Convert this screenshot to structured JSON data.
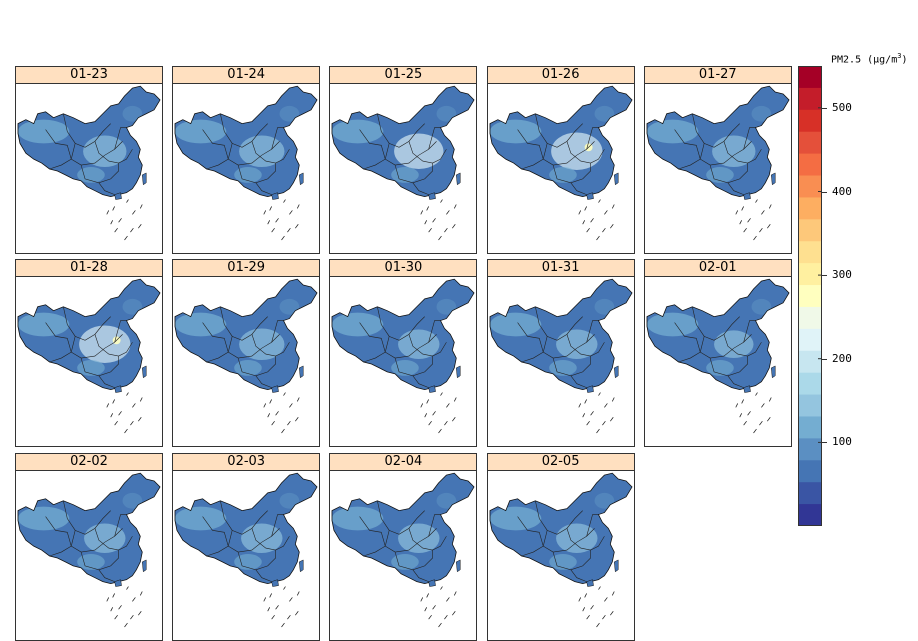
{
  "figure": {
    "panels": [
      {
        "date": "01-23",
        "level": 0.35
      },
      {
        "date": "01-24",
        "level": 0.4
      },
      {
        "date": "01-25",
        "level": 0.5
      },
      {
        "date": "01-26",
        "level": 0.55
      },
      {
        "date": "01-27",
        "level": 0.35
      },
      {
        "date": "01-28",
        "level": 0.55
      },
      {
        "date": "01-29",
        "level": 0.4
      },
      {
        "date": "01-30",
        "level": 0.3
      },
      {
        "date": "01-31",
        "level": 0.3
      },
      {
        "date": "02-01",
        "level": 0.25
      },
      {
        "date": "02-02",
        "level": 0.3
      },
      {
        "date": "02-03",
        "level": 0.3
      },
      {
        "date": "02-04",
        "level": 0.3
      },
      {
        "date": "02-05",
        "level": 0.3
      }
    ],
    "colorkey": {
      "title_prefix": "PM2.5 (μg/m",
      "title_sup": "3",
      "title_suffix": ")",
      "ticks": [
        "500",
        "400",
        "300",
        "200",
        "100"
      ],
      "tick_values": [
        500,
        400,
        300,
        200,
        100
      ],
      "range": [
        0,
        550
      ],
      "colors": [
        "#313695",
        "#3a55a4",
        "#4575b4",
        "#5b8fc2",
        "#74add1",
        "#94c5df",
        "#abd9e9",
        "#c7e6f0",
        "#e0f3f8",
        "#f0f9e8",
        "#ffffbf",
        "#fff0a0",
        "#fee090",
        "#fdc87a",
        "#fdae61",
        "#f98e52",
        "#f46d43",
        "#e4503a",
        "#d73027",
        "#c41d2a",
        "#a50026"
      ]
    }
  }
}
